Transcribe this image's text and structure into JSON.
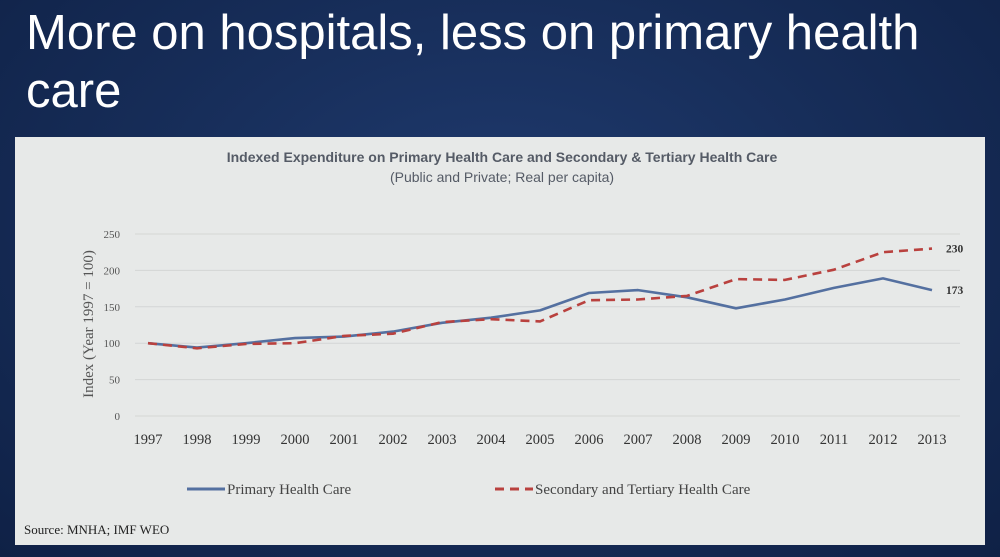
{
  "slide": {
    "title": "More on hospitals, less on primary health care",
    "source": "Source: MNHA; IMF WEO"
  },
  "chart_data": {
    "type": "line",
    "title": "Indexed Expenditure on Primary Health Care and Secondary & Tertiary Health Care",
    "subtitle": "(Public and Private; Real per capita)",
    "ylabel": "Index (Year 1997 = 100)",
    "xlabel": "",
    "ylim": [
      0,
      250
    ],
    "yticks": [
      0,
      50,
      100,
      150,
      200,
      250
    ],
    "grid": true,
    "legend_position": "bottom",
    "categories": [
      "1997",
      "1998",
      "1999",
      "2000",
      "2001",
      "2002",
      "2003",
      "2004",
      "2005",
      "2006",
      "2007",
      "2008",
      "2009",
      "2010",
      "2011",
      "2012",
      "2013"
    ],
    "series": [
      {
        "name": "Primary Health Care",
        "style": "solid",
        "color": "#5470a0",
        "values": [
          100,
          94,
          100,
          107,
          109,
          116,
          128,
          135,
          145,
          169,
          173,
          163,
          148,
          160,
          176,
          189,
          173
        ],
        "end_label": "173"
      },
      {
        "name": "Secondary and Tertiary Health Care",
        "style": "dashed",
        "color": "#b9413e",
        "values": [
          100,
          93,
          99,
          100,
          110,
          113,
          129,
          133,
          130,
          159,
          160,
          165,
          188,
          187,
          201,
          225,
          230
        ],
        "end_label": "230"
      }
    ]
  }
}
